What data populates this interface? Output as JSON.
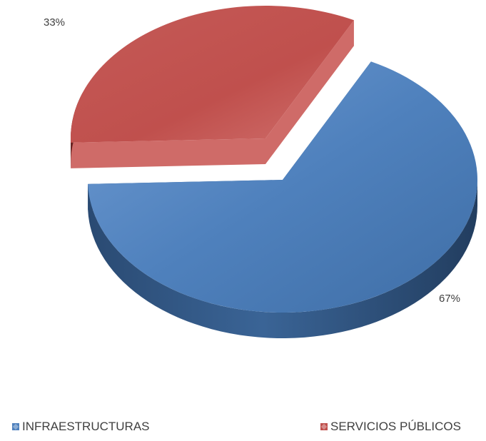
{
  "chart_data": {
    "type": "pie",
    "style": "3d-exploded",
    "title": "",
    "categories": [
      "INFRAESTRUCTURAS",
      "SERVICIOS PÚBLICOS"
    ],
    "values": [
      67,
      33
    ],
    "labels": [
      "67%",
      "33%"
    ],
    "colors": [
      "#4F81BD",
      "#C0504D"
    ],
    "legend_position": "bottom"
  }
}
